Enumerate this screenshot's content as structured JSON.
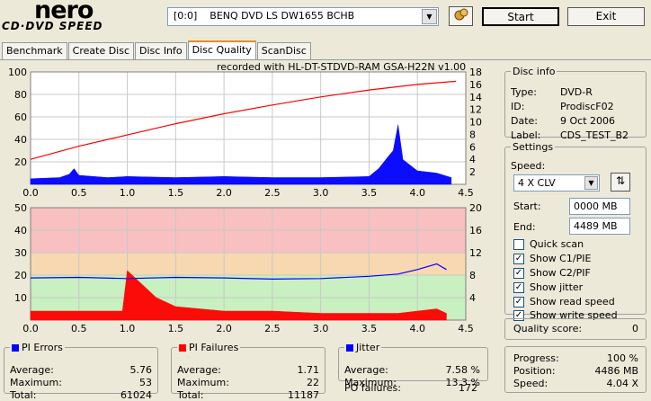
{
  "brand": {
    "name": "nero",
    "subtitle": "CD·DVD SPEED"
  },
  "drive": {
    "selected": "[0:0]    BENQ DVD LS DW1655 BCHB"
  },
  "toolbar": {
    "start_label": "Start",
    "exit_label": "Exit"
  },
  "tabs": [
    {
      "label": "Benchmark"
    },
    {
      "label": "Create Disc"
    },
    {
      "label": "Disc Info"
    },
    {
      "label": "Disc Quality"
    },
    {
      "label": "ScanDisc"
    }
  ],
  "active_tab": "Disc Quality",
  "recorded_with": "recorded with HL-DT-STDVD-RAM GSA-H22N v1.00",
  "chart_data": [
    {
      "type": "area",
      "name": "PI errors / read speed",
      "xlim": [
        0,
        4.5
      ],
      "x_ticks": [
        "0.0",
        "0.5",
        "1.0",
        "1.5",
        "2.0",
        "2.5",
        "3.0",
        "3.5",
        "4.0",
        "4.5"
      ],
      "ylim_left": [
        0,
        100
      ],
      "y_ticks_left": [
        "20",
        "40",
        "60",
        "80",
        "100"
      ],
      "ylim_right": [
        0,
        18
      ],
      "y_ticks_right": [
        "2",
        "4",
        "6",
        "8",
        "10",
        "12",
        "14",
        "16",
        "18"
      ],
      "series": [
        {
          "name": "PI Errors",
          "color": "#0000ff",
          "x": [
            0.0,
            0.3,
            0.4,
            0.45,
            0.5,
            0.8,
            1.0,
            1.5,
            2.0,
            2.5,
            3.0,
            3.5,
            3.6,
            3.7,
            3.75,
            3.8,
            3.85,
            4.0,
            4.2,
            4.35
          ],
          "values": [
            5,
            6,
            9,
            14,
            8,
            6,
            7,
            6,
            7,
            6,
            6,
            7,
            14,
            25,
            30,
            53,
            22,
            12,
            10,
            6
          ]
        },
        {
          "name": "Read speed",
          "color": "#ff0000",
          "x": [
            0.0,
            0.5,
            1.0,
            1.5,
            2.0,
            2.5,
            3.0,
            3.5,
            4.0,
            4.4
          ],
          "values": [
            4.0,
            6.1,
            7.9,
            9.7,
            11.3,
            12.7,
            14.0,
            15.1,
            16.0,
            16.5
          ]
        }
      ]
    },
    {
      "type": "area",
      "name": "PI failures / jitter",
      "xlim": [
        0,
        4.5
      ],
      "x_ticks": [
        "0.0",
        "0.5",
        "1.0",
        "1.5",
        "2.0",
        "2.5",
        "3.0",
        "3.5",
        "4.0",
        "4.5"
      ],
      "ylim_left": [
        0,
        50
      ],
      "y_ticks_left": [
        "10",
        "20",
        "30",
        "40",
        "50"
      ],
      "ylim_right": [
        0,
        20
      ],
      "y_ticks_right": [
        "4",
        "8",
        "12",
        "16",
        "20"
      ],
      "series": [
        {
          "name": "PI Failures",
          "color": "#ff0000",
          "x": [
            0.0,
            0.5,
            0.95,
            1.0,
            1.3,
            1.5,
            2.0,
            2.5,
            3.0,
            3.5,
            3.8,
            4.0,
            4.2,
            4.3
          ],
          "values": [
            4,
            4,
            4,
            22,
            10,
            6,
            4,
            4,
            3,
            3,
            3,
            4,
            5,
            3
          ]
        },
        {
          "name": "Jitter",
          "color": "#0000ff",
          "x": [
            0.0,
            0.5,
            1.0,
            1.5,
            2.0,
            2.5,
            3.0,
            3.5,
            3.8,
            4.0,
            4.2,
            4.3
          ],
          "values": [
            7.5,
            7.6,
            7.4,
            7.6,
            7.5,
            7.3,
            7.4,
            7.8,
            8.2,
            9.0,
            10.0,
            9.0
          ]
        }
      ]
    }
  ],
  "stats": {
    "pi_errors": {
      "title": "PI Errors",
      "color": "#0000ff",
      "avg_label": "Average:",
      "avg": "5.76",
      "max_label": "Maximum:",
      "max": "53",
      "total_label": "Total:",
      "total": "61024"
    },
    "pi_failures": {
      "title": "PI Failures",
      "color": "#ff0000",
      "avg_label": "Average:",
      "avg": "1.71",
      "max_label": "Maximum:",
      "max": "22",
      "total_label": "Total:",
      "total": "11187"
    },
    "jitter": {
      "title": "Jitter",
      "color": "#0000ff",
      "avg_label": "Average:",
      "avg": "7.58 %",
      "max_label": "Maximum:",
      "max": "13.3 %",
      "po_label": "PO failures:",
      "po": "172"
    }
  },
  "disc_info": {
    "title": "Disc info",
    "type_label": "Type:",
    "type": "DVD-R",
    "id_label": "ID:",
    "id": "ProdiscF02",
    "date_label": "Date:",
    "date": "9 Oct 2006",
    "label_label": "Label:",
    "label": "CDS_TEST_B2"
  },
  "settings": {
    "title": "Settings",
    "speed_label": "Speed:",
    "speed": "4 X CLV",
    "start_label": "Start:",
    "start": "0000 MB",
    "end_label": "End:",
    "end": "4489 MB",
    "quick_scan": "Quick scan",
    "show_c1": "Show C1/PIE",
    "show_c2": "Show C2/PIF",
    "show_jitter": "Show jitter",
    "show_read": "Show read speed",
    "show_write": "Show write speed"
  },
  "quality": {
    "label": "Quality score:",
    "value": "0"
  },
  "progress": {
    "progress_label": "Progress:",
    "progress": "100 %",
    "position_label": "Position:",
    "position": "4486 MB",
    "speed_label": "Speed:",
    "speed": "4.04 X"
  }
}
